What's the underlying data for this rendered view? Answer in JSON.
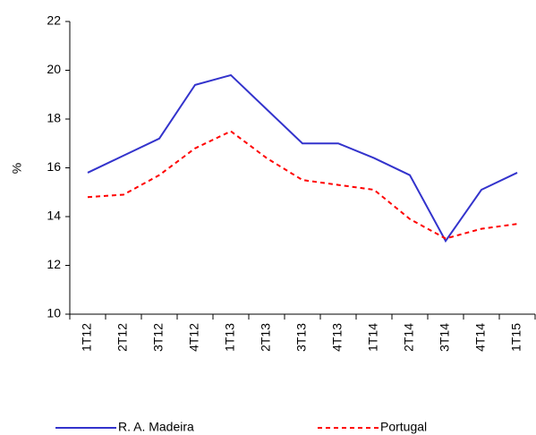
{
  "chart_data": {
    "type": "line",
    "y_label": "%",
    "categories": [
      "1T12",
      "2T12",
      "3T12",
      "4T12",
      "1T13",
      "2T13",
      "3T13",
      "4T13",
      "1T14",
      "2T14",
      "3T14",
      "4T14",
      "1T15"
    ],
    "series": [
      {
        "name": "R. A. Madeira",
        "color": "#3333cc",
        "dash": "none",
        "values": [
          15.8,
          16.5,
          17.2,
          19.4,
          19.8,
          18.4,
          17.0,
          17.0,
          16.4,
          15.7,
          13.0,
          15.1,
          15.8
        ]
      },
      {
        "name": "Portugal",
        "color": "#ff0000",
        "dash": "dashed",
        "values": [
          14.8,
          14.9,
          15.7,
          16.8,
          17.5,
          16.4,
          15.5,
          15.3,
          15.1,
          13.9,
          13.1,
          13.5,
          13.7
        ]
      }
    ],
    "ylim": [
      10,
      22
    ],
    "yticks": [
      10,
      12,
      14,
      16,
      18,
      20,
      22
    ],
    "grid": false
  }
}
